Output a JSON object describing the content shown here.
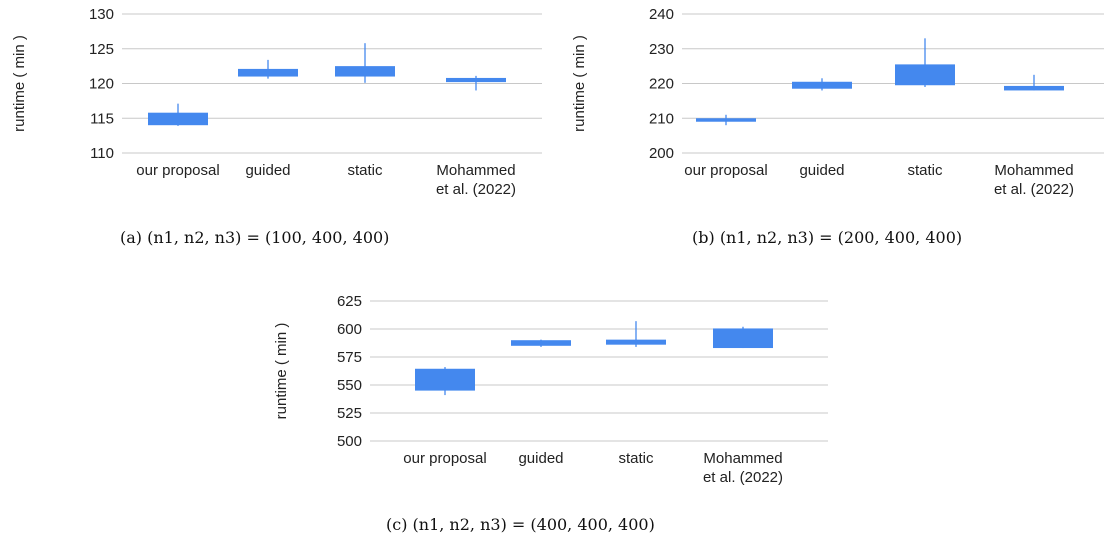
{
  "chart_data": [
    {
      "type": "box",
      "caption": "(a) (n1, n2, n3) = (100, 400, 400)",
      "ylabel": "runtime ( min )",
      "ylim": [
        110,
        130
      ],
      "yticks": [
        110,
        115,
        120,
        125,
        130
      ],
      "categories": [
        "our proposal",
        "guided",
        "static",
        "Mohammed et al. (2022)"
      ],
      "category_lines": [
        [
          "our proposal"
        ],
        [
          "guided"
        ],
        [
          "static"
        ],
        [
          "Mohammed",
          "et al. (2022)"
        ]
      ],
      "boxes": [
        {
          "min": 113.9,
          "q1": 114.0,
          "q3": 115.8,
          "max": 117.1
        },
        {
          "min": 120.7,
          "q1": 121.0,
          "q3": 122.1,
          "max": 123.4
        },
        {
          "min": 120.1,
          "q1": 121.0,
          "q3": 122.5,
          "max": 125.8
        },
        {
          "min": 119.0,
          "q1": 120.2,
          "q3": 120.8,
          "max": 121.1
        }
      ],
      "grid": true,
      "color": "#4488ee"
    },
    {
      "type": "box",
      "caption": "(b) (n1, n2, n3) = (200, 400, 400)",
      "ylabel": "runtime ( min )",
      "ylim": [
        200,
        240
      ],
      "yticks": [
        200,
        210,
        220,
        230,
        240
      ],
      "categories": [
        "our proposal",
        "guided",
        "static",
        "Mohammed et al. (2022)"
      ],
      "category_lines": [
        [
          "our proposal"
        ],
        [
          "guided"
        ],
        [
          "static"
        ],
        [
          "Mohammed",
          "et al. (2022)"
        ]
      ],
      "boxes": [
        {
          "min": 208.0,
          "q1": 209.0,
          "q3": 210.0,
          "max": 211.0
        },
        {
          "min": 218.0,
          "q1": 218.5,
          "q3": 220.5,
          "max": 221.5
        },
        {
          "min": 219.0,
          "q1": 219.5,
          "q3": 225.5,
          "max": 233.0
        },
        {
          "min": 218.0,
          "q1": 218.0,
          "q3": 219.3,
          "max": 222.5
        }
      ],
      "grid": true,
      "color": "#4488ee"
    },
    {
      "type": "box",
      "caption": "(c) (n1, n2, n3) = (400, 400, 400)",
      "ylabel": "runtime ( min )",
      "ylim": [
        500,
        625
      ],
      "yticks": [
        500,
        525,
        550,
        575,
        600,
        625
      ],
      "categories": [
        "our proposal",
        "guided",
        "static",
        "Mohammed et al. (2022)"
      ],
      "category_lines": [
        [
          "our proposal"
        ],
        [
          "guided"
        ],
        [
          "static"
        ],
        [
          "Mohammed",
          "et al. (2022)"
        ]
      ],
      "boxes": [
        {
          "min": 541.0,
          "q1": 545.0,
          "q3": 564.5,
          "max": 566.0
        },
        {
          "min": 584.0,
          "q1": 585.0,
          "q3": 590.0,
          "max": 590.5
        },
        {
          "min": 584.0,
          "q1": 586.0,
          "q3": 590.5,
          "max": 607.0
        },
        {
          "min": 583.0,
          "q1": 583.0,
          "q3": 600.5,
          "max": 602.0
        }
      ],
      "grid": true,
      "color": "#4488ee"
    }
  ]
}
